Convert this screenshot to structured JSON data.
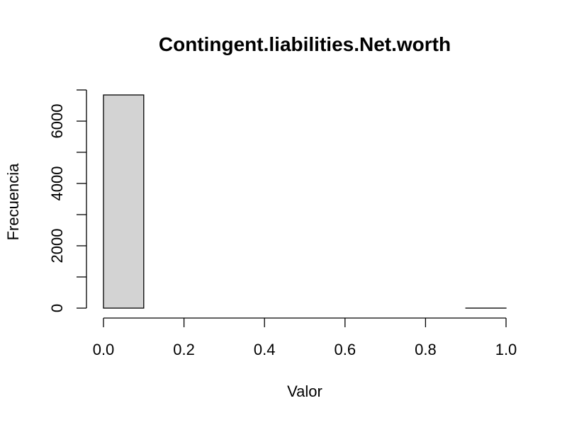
{
  "chart_data": {
    "type": "bar",
    "title": "Contingent.liabilities.Net.worth",
    "xlabel": "Valor",
    "ylabel": "Frecuencia",
    "bins": [
      {
        "start": 0.0,
        "end": 0.1,
        "count": 6840
      },
      {
        "start": 0.1,
        "end": 0.2,
        "count": 0
      },
      {
        "start": 0.2,
        "end": 0.3,
        "count": 0
      },
      {
        "start": 0.3,
        "end": 0.4,
        "count": 0
      },
      {
        "start": 0.4,
        "end": 0.5,
        "count": 0
      },
      {
        "start": 0.5,
        "end": 0.6,
        "count": 0
      },
      {
        "start": 0.6,
        "end": 0.7,
        "count": 0
      },
      {
        "start": 0.7,
        "end": 0.8,
        "count": 0
      },
      {
        "start": 0.8,
        "end": 0.9,
        "count": 0
      },
      {
        "start": 0.9,
        "end": 1.0,
        "count": 1
      }
    ],
    "xlim": [
      0.0,
      1.0
    ],
    "ylim": [
      0,
      7000
    ],
    "x_ticks": [
      "0.0",
      "0.2",
      "0.4",
      "0.6",
      "0.8",
      "1.0"
    ],
    "y_ticks": [
      "0",
      "2000",
      "4000",
      "6000"
    ],
    "grid": false,
    "colors": {
      "bar_fill": "#d3d3d3",
      "bar_stroke": "#000000"
    }
  }
}
